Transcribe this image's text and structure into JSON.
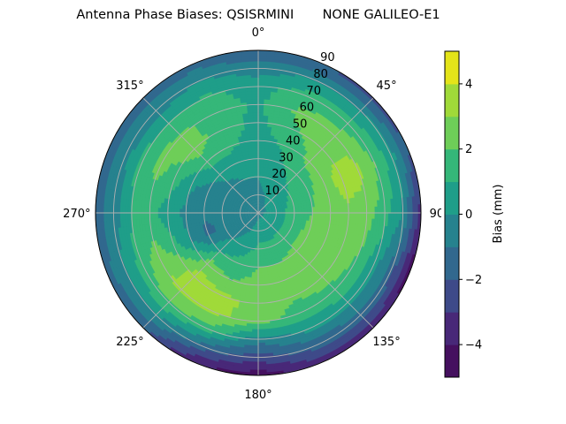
{
  "chart_data": {
    "type": "polar-contour",
    "title": "Antenna Phase Biases: QSISRMINI       NONE GALILEO-E1",
    "theta_zero": "north",
    "theta_direction": "clockwise",
    "theta_ticks": [
      "0°",
      "45°",
      "90°",
      "135°",
      "180°",
      "225°",
      "270°",
      "315°"
    ],
    "r_ticks": [
      "10",
      "20",
      "30",
      "40",
      "50",
      "60",
      "70",
      "80",
      "90"
    ],
    "rlim": [
      0,
      90
    ],
    "grid": true,
    "colorbar": {
      "label": "Bias (mm)",
      "levels": [
        -5,
        -4,
        -3,
        -2,
        -1,
        0,
        1,
        2,
        3,
        4,
        5
      ],
      "ticks": [
        "4",
        "2",
        "0",
        "−2",
        "−4"
      ],
      "colors": [
        "#45105f",
        "#482878",
        "#3e4a89",
        "#31688e",
        "#26828e",
        "#1f9e89",
        "#35b779",
        "#6ece58",
        "#a0da39",
        "#e4e419"
      ]
    },
    "azimuths": [
      0,
      22.5,
      45,
      67.5,
      90,
      112.5,
      135,
      157.5,
      180,
      202.5,
      225,
      247.5,
      270,
      292.5,
      315,
      337.5
    ],
    "radii": [
      0,
      10,
      20,
      30,
      40,
      50,
      60,
      70,
      80,
      90
    ],
    "values": [
      [
        -0.3,
        -0.3,
        0.0,
        0.3,
        0.5,
        0.7,
        0.8,
        0.6,
        -0.5,
        -2.0
      ],
      [
        -0.3,
        0.0,
        0.5,
        0.8,
        1.2,
        1.8,
        2.2,
        1.5,
        0.0,
        -2.0
      ],
      [
        -0.3,
        0.3,
        0.8,
        1.5,
        2.2,
        2.5,
        2.5,
        1.5,
        0.0,
        -2.5
      ],
      [
        -0.3,
        0.4,
        1.2,
        1.8,
        2.5,
        3.5,
        3.3,
        2.0,
        0.5,
        -2.0
      ],
      [
        -0.3,
        0.5,
        1.5,
        2.0,
        2.5,
        2.8,
        2.5,
        1.5,
        0.0,
        -3.5
      ],
      [
        -0.3,
        0.5,
        1.5,
        2.3,
        2.6,
        2.5,
        2.0,
        0.5,
        -1.5,
        -4.5
      ],
      [
        -0.3,
        0.5,
        1.5,
        2.3,
        2.7,
        2.5,
        1.7,
        0.5,
        -1.5,
        -3.5
      ],
      [
        -0.3,
        0.5,
        1.2,
        2.0,
        2.4,
        2.2,
        1.5,
        0.3,
        -1.5,
        -3.5
      ],
      [
        -0.3,
        0.5,
        1.2,
        2.0,
        2.3,
        2.8,
        2.5,
        -0.5,
        -2.5,
        -4.5
      ],
      [
        -0.3,
        0.0,
        0.5,
        1.3,
        2.0,
        3.2,
        3.2,
        1.5,
        -1.5,
        -4.0
      ],
      [
        -0.3,
        -0.5,
        0.0,
        1.0,
        2.5,
        3.5,
        3.3,
        2.0,
        0.0,
        -2.0
      ],
      [
        -0.3,
        -1.0,
        -0.7,
        -1.3,
        0.0,
        1.5,
        2.5,
        1.5,
        0.0,
        -1.5
      ],
      [
        -0.3,
        -0.7,
        -0.8,
        -0.8,
        -0.3,
        0.5,
        1.3,
        1.0,
        -0.5,
        -1.5
      ],
      [
        -0.3,
        -0.5,
        -0.5,
        -0.5,
        0.2,
        1.5,
        2.2,
        1.5,
        -0.5,
        -1.5
      ],
      [
        -0.3,
        -0.3,
        -0.3,
        0.3,
        1.5,
        2.5,
        2.3,
        1.0,
        -0.5,
        -1.5
      ],
      [
        -0.3,
        -0.3,
        0.0,
        0.5,
        1.2,
        1.5,
        1.5,
        1.2,
        0.0,
        -1.5
      ]
    ]
  }
}
